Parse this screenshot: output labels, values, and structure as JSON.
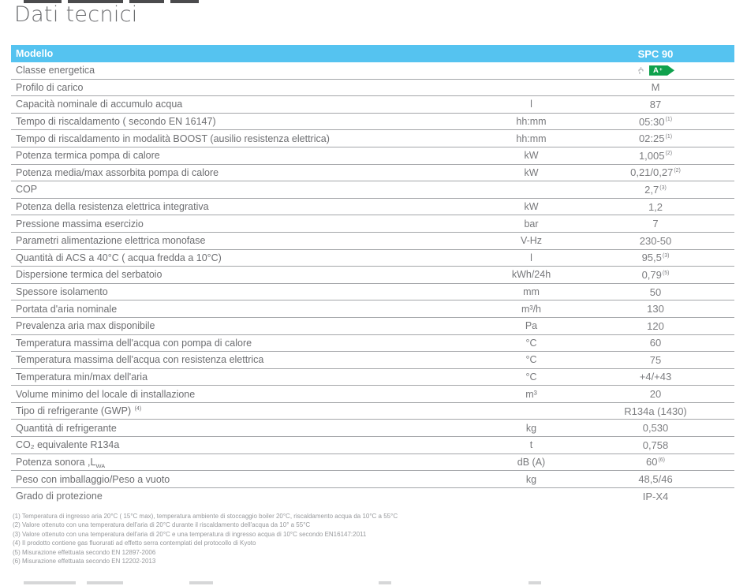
{
  "page_title": "Dati tecnici",
  "colors": {
    "header_bg": "#55C3F0",
    "header_text": "#FFFFFF",
    "energy_badge_green": "#0FA14D",
    "row_text": "#6D6E71",
    "value_text": "#7C7D80",
    "separator_line": "#A4A6A9",
    "footnote_text": "#97999C",
    "title_text": "#6A6B6E"
  },
  "table": {
    "header": {
      "model_label": "Modello",
      "model_value": "SPC 90"
    },
    "energy_row": {
      "label": "Classe energetica",
      "icon": "water-tap-icon",
      "badge_grade": "A",
      "badge_sup": "+"
    },
    "rows": [
      {
        "label": "Profilo di carico",
        "unit": "",
        "value": "M"
      },
      {
        "label": "Capacità nominale di accumulo acqua",
        "unit": "l",
        "value": "87"
      },
      {
        "label": "Tempo di riscaldamento ( secondo EN 16147)",
        "unit": "hh:mm",
        "value": "05:30",
        "value_sup": "(1)"
      },
      {
        "label": "Tempo di riscaldamento in modalità BOOST (ausilio resistenza elettrica)",
        "unit": "hh:mm",
        "value": "02:25",
        "value_sup": "(1)"
      },
      {
        "label": "Potenza termica pompa di calore",
        "unit": "kW",
        "value": "1,005",
        "value_sup": "(2)"
      },
      {
        "label": "Potenza media/max assorbita pompa di calore",
        "unit": "kW",
        "value": "0,21/0,27",
        "value_sup": "(2)"
      },
      {
        "label": "COP",
        "unit": "",
        "value": "2,7",
        "value_sup": "(3)"
      },
      {
        "label": "Potenza della resistenza elettrica integrativa",
        "unit": "kW",
        "value": "1,2"
      },
      {
        "label": "Pressione massima esercizio",
        "unit": "bar",
        "value": "7"
      },
      {
        "label": "Parametri alimentazione elettrica monofase",
        "unit": "V-Hz",
        "value": "230-50"
      },
      {
        "label": "Quantità di ACS a 40°C ( acqua fredda a 10°C)",
        "unit": "l",
        "value": "95,5",
        "value_sup": "(3)"
      },
      {
        "label": "Dispersione termica del serbatoio",
        "unit": "kWh/24h",
        "value": "0,79",
        "value_sup": "(5)"
      },
      {
        "label": "Spessore isolamento",
        "unit": "mm",
        "value": "50"
      },
      {
        "label": "Portata d'aria nominale",
        "unit": "m³/h",
        "value": "130"
      },
      {
        "label": "Prevalenza aria max disponibile",
        "unit": "Pa",
        "value": "120"
      },
      {
        "label": "Temperatura massima dell'acqua con pompa di calore",
        "unit": "°C",
        "value": "60"
      },
      {
        "label": "Temperatura massima dell'acqua con resistenza elettrica",
        "unit": "°C",
        "value": "75"
      },
      {
        "label": "Temperatura min/max dell'aria",
        "unit": "°C",
        "value": "+4/+43"
      },
      {
        "label": "Volume minimo del locale di installazione",
        "unit": "m³",
        "value": "20"
      },
      {
        "label": "Tipo di refrigerante (GWP) ",
        "label_sup": "(4)",
        "unit": "",
        "value": "R134a (1430)"
      },
      {
        "label": "Quantità di refrigerante",
        "unit": "kg",
        "value": "0,530"
      },
      {
        "label": "CO₂ equivalente R134a",
        "unit": "t",
        "value": "0,758"
      },
      {
        "label": "Potenza sonora ,L",
        "label_sub": "WA",
        "unit": "dB (A)",
        "value": "60",
        "value_sup": "(6)"
      },
      {
        "label": "Peso con imballaggio/Peso a vuoto",
        "unit": "kg",
        "value": "48,5/46"
      },
      {
        "label": "Grado di protezione",
        "unit": "",
        "value": "IP-X4"
      }
    ],
    "footnotes": [
      "(1) Temperatura di ingresso aria 20°C ( 15°C max), temperatura ambiente di stoccaggio boiler 20°C, riscaldamento acqua da 10°C a 55°C",
      "(2) Valore ottenuto con una temperatura dell'aria di 20°C durante il riscaldamento dell'acqua da 10° a 55°C",
      "(3) Valore ottenuto con una temperatura dell'aria di 20°C e una temperatura di ingresso acqua di 10°C secondo EN16147:2011",
      "(4) Il prodotto contiene gas fluorurati ad effetto serra contemplati del protocollo di Kyoto",
      "(5) Misurazione effettuata secondo EN 12897-2006",
      "(6) Misurazione effettuata secondo EN 12202-2013"
    ]
  }
}
